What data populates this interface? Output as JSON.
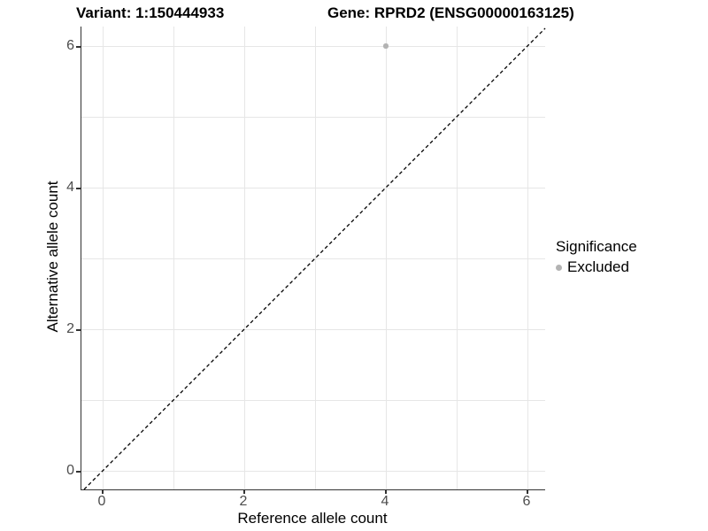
{
  "titles": {
    "variant": "Variant: 1:150444933",
    "gene": "Gene: RPRD2 (ENSG00000163125)"
  },
  "chart_data": {
    "type": "scatter",
    "title_left": "Variant: 1:150444933",
    "title_right": "Gene: RPRD2 (ENSG00000163125)",
    "xlabel": "Reference allele count",
    "ylabel": "Alternative allele count",
    "xlim": [
      -0.3,
      6.25
    ],
    "ylim": [
      -0.3,
      6.3
    ],
    "x_ticks": [
      0,
      2,
      4,
      6
    ],
    "y_ticks": [
      0,
      2,
      4,
      6
    ],
    "x_grid": [
      0,
      1,
      2,
      3,
      4,
      5,
      6
    ],
    "y_grid": [
      0,
      1,
      2,
      3,
      4,
      5,
      6
    ],
    "grid": "on",
    "series": [
      {
        "name": "Excluded",
        "color": "#b3b3b3",
        "points": [
          {
            "x": 4,
            "y": 6
          }
        ],
        "point_radius": 2.6
      }
    ],
    "reference_line": {
      "type": "identity",
      "slope": 1,
      "intercept": 0,
      "style": "dashed",
      "color": "#000000"
    },
    "legend": {
      "title": "Significance",
      "position": "right",
      "entries": [
        {
          "label": "Excluded",
          "color": "#b3b3b3"
        }
      ]
    }
  },
  "colors": {
    "background": "#ffffff",
    "gridline": "#e6e6e6",
    "axis_line": "#333333",
    "tick_label": "#4d4d4d",
    "title_text": "#000000"
  }
}
